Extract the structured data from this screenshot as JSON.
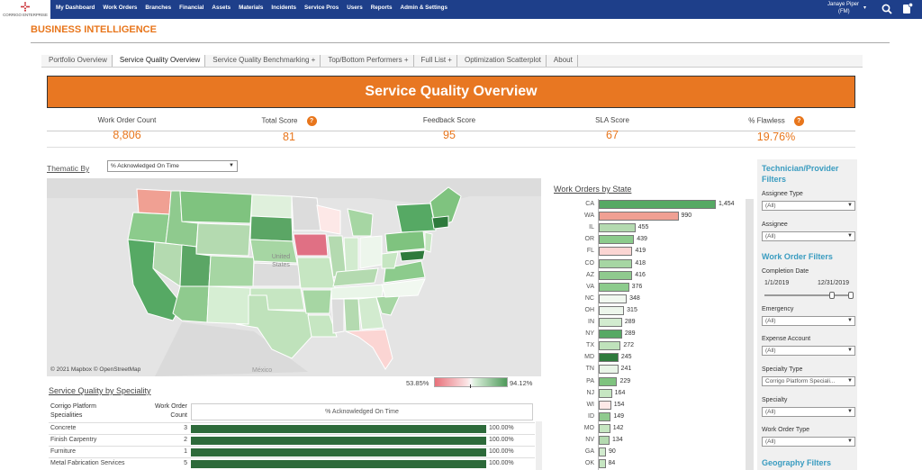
{
  "logo_text": "CORRIGO ENTERPRISE",
  "nav": [
    "My Dashboard",
    "Work Orders",
    "Branches",
    "Financial",
    "Assets",
    "Materials",
    "Incidents",
    "Service Pros",
    "Users",
    "Reports",
    "Admin & Settings"
  ],
  "user": {
    "name": "Janaye Piper",
    "role": "(FM)"
  },
  "page_title": "BUSINESS INTELLIGENCE",
  "tabs": [
    "Portfolio Overview",
    "Service Quality Overview",
    "Service Quality Benchmarking +",
    "Top/Bottom Performers +",
    "Full List +",
    "Optimization Scatterplot",
    "About"
  ],
  "active_tab": "Service Quality Overview",
  "banner": "Service Quality Overview",
  "kpis": [
    {
      "label": "Work Order Count",
      "value": "8,806"
    },
    {
      "label": "Total Score",
      "value": "81"
    },
    {
      "label": "Feedback Score",
      "value": "95"
    },
    {
      "label": "SLA Score",
      "value": "67"
    },
    {
      "label": "% Flawless",
      "value": "19.76%"
    }
  ],
  "help_glyph": "?",
  "thematic": {
    "label": "Thematic By",
    "value": "% Acknowledged On Time"
  },
  "map": {
    "credit": "© 2021 Mapbox  © OpenStreetMap",
    "country_label": "United States",
    "mexico_label": "México"
  },
  "legend": {
    "min": "53.85%",
    "max": "94.12%"
  },
  "speciality": {
    "title": "Service Quality by Speciality",
    "col1": "Corrigo Platform Specialities",
    "col2": "Work Order Count",
    "col3": "% Acknowledged On Time",
    "rows": [
      {
        "name": "Concrete",
        "count": "3",
        "pct": "100.00%",
        "value": 100
      },
      {
        "name": "Finish Carpentry",
        "count": "2",
        "pct": "100.00%",
        "value": 100
      },
      {
        "name": "Furniture",
        "count": "1",
        "pct": "100.00%",
        "value": 100
      },
      {
        "name": "Metal Fabrication Services",
        "count": "5",
        "pct": "100.00%",
        "value": 100
      }
    ]
  },
  "work_orders_by_state": {
    "title": "Work Orders by State",
    "rows": [
      {
        "state": "CA",
        "count": 1454,
        "label": "1,454",
        "color": "#56a964"
      },
      {
        "state": "WA",
        "count": 990,
        "label": "990",
        "color": "#f0a093"
      },
      {
        "state": "IL",
        "count": 455,
        "label": "455",
        "color": "#b4dab0"
      },
      {
        "state": "OR",
        "count": 439,
        "label": "439",
        "color": "#8ccb8c"
      },
      {
        "state": "FL",
        "count": 419,
        "label": "419",
        "color": "#fbd5d3"
      },
      {
        "state": "CO",
        "count": 418,
        "label": "418",
        "color": "#a6d6a3"
      },
      {
        "state": "AZ",
        "count": 416,
        "label": "416",
        "color": "#8fca8e"
      },
      {
        "state": "VA",
        "count": 376,
        "label": "376",
        "color": "#8ccb8c"
      },
      {
        "state": "NC",
        "count": 348,
        "label": "348",
        "color": "#f1f8f0"
      },
      {
        "state": "OH",
        "count": 315,
        "label": "315",
        "color": "#edf6ec"
      },
      {
        "state": "IN",
        "count": 289,
        "label": "289",
        "color": "#d2ebcf"
      },
      {
        "state": "NY",
        "count": 289,
        "label": "289",
        "color": "#56a964"
      },
      {
        "state": "TX",
        "count": 272,
        "label": "272",
        "color": "#bfe2bb"
      },
      {
        "state": "MD",
        "count": 245,
        "label": "245",
        "color": "#2e7a3c"
      },
      {
        "state": "TN",
        "count": 241,
        "label": "241",
        "color": "#e9f5e8"
      },
      {
        "state": "PA",
        "count": 229,
        "label": "229",
        "color": "#7fc37f"
      },
      {
        "state": "NJ",
        "count": 164,
        "label": "164",
        "color": "#c6e6c2"
      },
      {
        "state": "WI",
        "count": 154,
        "label": "154",
        "color": "#fde8e7"
      },
      {
        "state": "ID",
        "count": 149,
        "label": "149",
        "color": "#8fca8e"
      },
      {
        "state": "MO",
        "count": 142,
        "label": "142",
        "color": "#c6e6c2"
      },
      {
        "state": "NV",
        "count": 134,
        "label": "134",
        "color": "#b4dab0"
      },
      {
        "state": "GA",
        "count": 90,
        "label": "90",
        "color": "#d2ebcf"
      },
      {
        "state": "OK",
        "count": 84,
        "label": "84",
        "color": "#c6e6c2"
      }
    ]
  },
  "filters": {
    "tech_title": "Technician/Provider Filters",
    "assignee_type": {
      "label": "Assignee Type",
      "value": "(All)"
    },
    "assignee": {
      "label": "Assignee",
      "value": "(All)"
    },
    "wo_title": "Work Order Filters",
    "completion": {
      "label": "Completion Date",
      "from": "1/1/2019",
      "to": "12/31/2019"
    },
    "emergency": {
      "label": "Emergency",
      "value": "(All)"
    },
    "expense": {
      "label": "Expense Account",
      "value": "(All)"
    },
    "specialty_type": {
      "label": "Specialty Type",
      "value": "Corrigo Platform Speciali..."
    },
    "specialty": {
      "label": "Specialty",
      "value": "(All)"
    },
    "wo_type": {
      "label": "Work Order Type",
      "value": "(All)"
    },
    "geo_title": "Geography Filters"
  }
}
